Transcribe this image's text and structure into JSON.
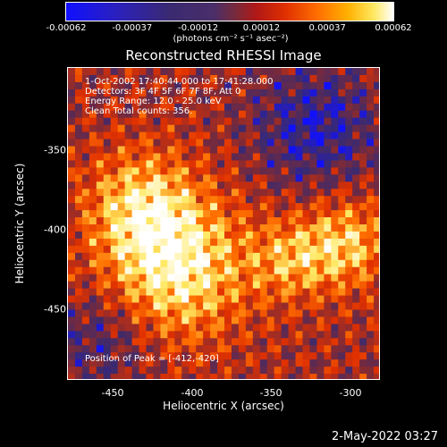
{
  "colorbar": {
    "tick_labels": [
      "-0.00062",
      "-0.00037",
      "-0.00012",
      "0.00012",
      "0.00037",
      "0.00062"
    ],
    "tick_values": [
      -0.00062,
      -0.00037,
      -0.00012,
      0.00012,
      0.00037,
      0.00062
    ],
    "range": [
      -0.00062,
      0.00062
    ],
    "units": "(photons cm⁻² s⁻¹ asec⁻²)"
  },
  "chart_data": {
    "type": "heatmap",
    "title": "Reconstructed RHESSI Image",
    "xlabel": "Heliocentric X (arcsec)",
    "ylabel": "Heliocentric Y (arcsec)",
    "xlim": [
      -475,
      -285
    ],
    "ylim": [
      -495,
      -305
    ],
    "x_ticks": [
      -450,
      -400,
      -350,
      -300
    ],
    "y_ticks": [
      -350,
      -400,
      -450
    ],
    "colormap": [
      "#1010ff",
      "#3a2a70",
      "#7a2a3a",
      "#e03000",
      "#ff7000",
      "#ffe860",
      "#ffffff"
    ],
    "peak": [
      -412,
      -420
    ],
    "annotations": [
      "1-Oct-2002 17:40:44.000 to 17:41:28.000",
      "Detectors: 3F 4F 5F 6F 7F 8F, Att 0",
      "Energy Range: 12.0 - 25.0 keV",
      "Clean    Total counts: 356.",
      "Position of Peak = [-412,-420]"
    ]
  },
  "footer": {
    "timestamp": "2-May-2022 03:27"
  }
}
